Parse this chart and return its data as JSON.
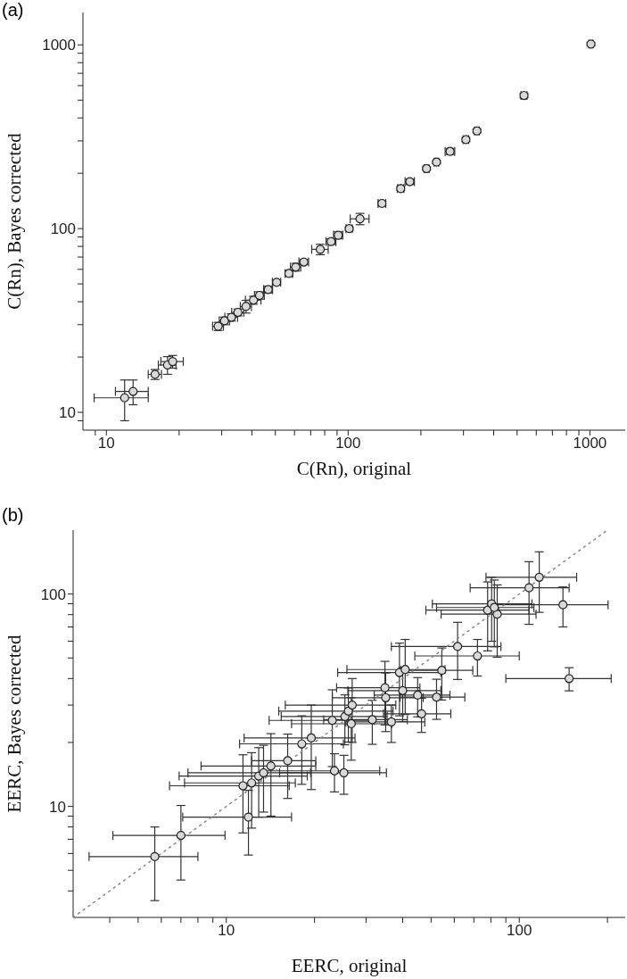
{
  "chart_data": [
    {
      "type": "scatter",
      "annotations": [
        "(a)"
      ],
      "xlabel": "C(Rn), original",
      "ylabel": "C(Rn), Bayes corrected",
      "log": "xy",
      "xlim": [
        8,
        1400
      ],
      "ylim": [
        8,
        1500
      ],
      "xticks": [
        {
          "value": 9,
          "label": null
        },
        10,
        {
          "value": 20,
          "label": null
        },
        {
          "value": 30,
          "label": null
        },
        {
          "value": 40,
          "label": null
        },
        {
          "value": 50,
          "label": null
        },
        {
          "value": 60,
          "label": null
        },
        {
          "value": 70,
          "label": null
        },
        {
          "value": 80,
          "label": null
        },
        {
          "value": 90,
          "label": null
        },
        100,
        {
          "value": 200,
          "label": null
        },
        {
          "value": 300,
          "label": null
        },
        {
          "value": 400,
          "label": null
        },
        {
          "value": 500,
          "label": null
        },
        {
          "value": 600,
          "label": null
        },
        {
          "value": 700,
          "label": null
        },
        {
          "value": 800,
          "label": null
        },
        {
          "value": 900,
          "label": null
        },
        1000
      ],
      "yticks": [
        {
          "value": 9,
          "label": null
        },
        10,
        {
          "value": 20,
          "label": null
        },
        {
          "value": 30,
          "label": null
        },
        {
          "value": 40,
          "label": null
        },
        {
          "value": 50,
          "label": null
        },
        {
          "value": 60,
          "label": null
        },
        {
          "value": 70,
          "label": null
        },
        {
          "value": 80,
          "label": null
        },
        {
          "value": 90,
          "label": null
        },
        100,
        {
          "value": 200,
          "label": null
        },
        {
          "value": 300,
          "label": null
        },
        {
          "value": 400,
          "label": null
        },
        {
          "value": 500,
          "label": null
        },
        {
          "value": 600,
          "label": null
        },
        {
          "value": 700,
          "label": null
        },
        {
          "value": 800,
          "label": null
        },
        {
          "value": 900,
          "label": null
        },
        1000
      ],
      "series": [
        {
          "color": "#d9d9d9",
          "marker": "circle",
          "x": [
            11.9,
            12.9,
            15.9,
            17.9,
            18.8,
            29,
            30.8,
            32.9,
            35,
            37.8,
            40.6,
            43,
            46.7,
            50.6,
            56.9,
            60.7,
            65.6,
            76.7,
            85,
            91,
            101,
            112,
            138,
            165,
            180,
            211,
            232,
            264,
            307,
            341,
            534,
            1010
          ],
          "values": [
            12.0,
            13.0,
            16.1,
            18.1,
            18.9,
            29.4,
            31.5,
            32.9,
            35,
            37.7,
            40.8,
            43.3,
            46.6,
            51,
            57,
            61.7,
            65.8,
            77.1,
            85,
            92,
            100,
            113,
            137,
            165,
            180,
            212,
            230,
            263,
            305,
            340,
            530,
            1010
          ],
          "xerrors": [
            3,
            2,
            1,
            1.5,
            2,
            1.5,
            1.5,
            2,
            2,
            2,
            3,
            2,
            2,
            2,
            2,
            3,
            3,
            6,
            4,
            4,
            3,
            10,
            5,
            5,
            8,
            5,
            5,
            12,
            8,
            8,
            15,
            20
          ],
          "errors": [
            3,
            2,
            1,
            2,
            1.5,
            1.5,
            1.5,
            1.5,
            1.5,
            3,
            2,
            2,
            2,
            1.5,
            2,
            3,
            2,
            5,
            3,
            4,
            2,
            8,
            4,
            4,
            6,
            4,
            4,
            10,
            8,
            8,
            15,
            20
          ]
        }
      ]
    },
    {
      "type": "scatter",
      "annotations": [
        "(b)"
      ],
      "xlabel": "EERC, original",
      "ylabel": "EERC, Bayes corrected",
      "log": "xy",
      "xlim": [
        3,
        230
      ],
      "ylim": [
        3,
        200
      ],
      "xticks": [
        {
          "value": 4,
          "label": null
        },
        {
          "value": 5,
          "label": null
        },
        {
          "value": 6,
          "label": null
        },
        {
          "value": 7,
          "label": null
        },
        {
          "value": 8,
          "label": null
        },
        {
          "value": 9,
          "label": null
        },
        10,
        {
          "value": 20,
          "label": null
        },
        {
          "value": 30,
          "label": null
        },
        {
          "value": 40,
          "label": null
        },
        {
          "value": 50,
          "label": null
        },
        {
          "value": 60,
          "label": null
        },
        {
          "value": 70,
          "label": null
        },
        {
          "value": 80,
          "label": null
        },
        {
          "value": 90,
          "label": null
        },
        100,
        {
          "value": 200,
          "label": null
        }
      ],
      "yticks": [
        {
          "value": 4,
          "label": null
        },
        {
          "value": 5,
          "label": null
        },
        {
          "value": 6,
          "label": null
        },
        {
          "value": 7,
          "label": null
        },
        {
          "value": 8,
          "label": null
        },
        {
          "value": 9,
          "label": null
        },
        10,
        {
          "value": 20,
          "label": null
        },
        {
          "value": 30,
          "label": null
        },
        {
          "value": 40,
          "label": null
        },
        {
          "value": 50,
          "label": null
        },
        {
          "value": 60,
          "label": null
        },
        {
          "value": 70,
          "label": null
        },
        {
          "value": 80,
          "label": null
        },
        {
          "value": 90,
          "label": null
        },
        100
      ],
      "series": [
        {
          "type": "line",
          "color": "#888888",
          "line_style": "dotted",
          "x": [
            3,
            200
          ],
          "values": [
            3,
            200
          ]
        },
        {
          "color": "#d9d9d9",
          "marker": "circle",
          "x": [
            5.7,
            7.0,
            11.9,
            11.4,
            12.2,
            12.9,
            13.4,
            14.2,
            16.2,
            18.1,
            19.5,
            23,
            23.4,
            25.2,
            25.4,
            26.1,
            26.9,
            26.7,
            31.5,
            34.8,
            35,
            36.6,
            39.0,
            40.8,
            40,
            45.0,
            46.4,
            52.2,
            54.4,
            61.6,
            72.0,
            78.0,
            80.5,
            84.1,
            82.2,
            108,
            117,
            141,
            148
          ],
          "values": [
            5.8,
            7.3,
            8.9,
            12.5,
            12.9,
            13.9,
            14.4,
            15.5,
            16.4,
            19.7,
            21,
            25.4,
            14.7,
            14.4,
            26.5,
            28.1,
            30.0,
            24.5,
            25.6,
            36.2,
            32.5,
            25.0,
            42.7,
            44.1,
            35.1,
            33.4,
            27.3,
            32.7,
            43.7,
            56.6,
            51.1,
            84.0,
            89.9,
            80.4,
            86.4,
            107,
            120,
            89,
            40
          ],
          "xerrors": [
            2.3,
            2.9,
            4.8,
            5,
            5,
            6,
            6,
            6,
            4,
            7,
            8,
            9,
            10,
            10,
            10,
            11,
            11,
            10,
            10,
            11,
            12,
            11,
            15,
            15,
            14,
            13,
            12,
            13,
            15,
            25,
            28,
            30,
            30,
            30,
            30,
            40,
            40,
            60,
            58
          ],
          "errors": [
            2.2,
            2.8,
            3.0,
            5,
            5,
            5,
            5,
            6.5,
            5.5,
            7,
            9,
            10,
            3,
            3,
            7,
            8,
            10,
            8,
            6,
            12,
            10,
            5,
            16,
            17,
            10,
            7,
            5,
            7,
            12,
            17,
            10,
            30,
            30,
            30,
            30,
            35,
            38,
            19,
            5
          ]
        }
      ]
    }
  ]
}
